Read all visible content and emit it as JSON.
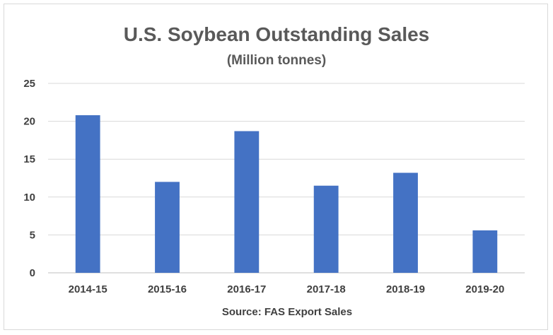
{
  "chart_data": {
    "type": "bar",
    "title": "U.S. Soybean Outstanding Sales",
    "subtitle": "(Million tonnes)",
    "xlabel": "Source: FAS Export Sales",
    "ylabel": "",
    "categories": [
      "2014-15",
      "2015-16",
      "2016-17",
      "2017-18",
      "2018-19",
      "2019-20"
    ],
    "values": [
      20.8,
      12.0,
      18.7,
      11.5,
      13.2,
      5.6
    ],
    "ylim": [
      0,
      25
    ],
    "yticks": [
      0,
      5,
      10,
      15,
      20,
      25
    ],
    "grid": true,
    "legend": "none",
    "bar_color": "#4472c4"
  }
}
